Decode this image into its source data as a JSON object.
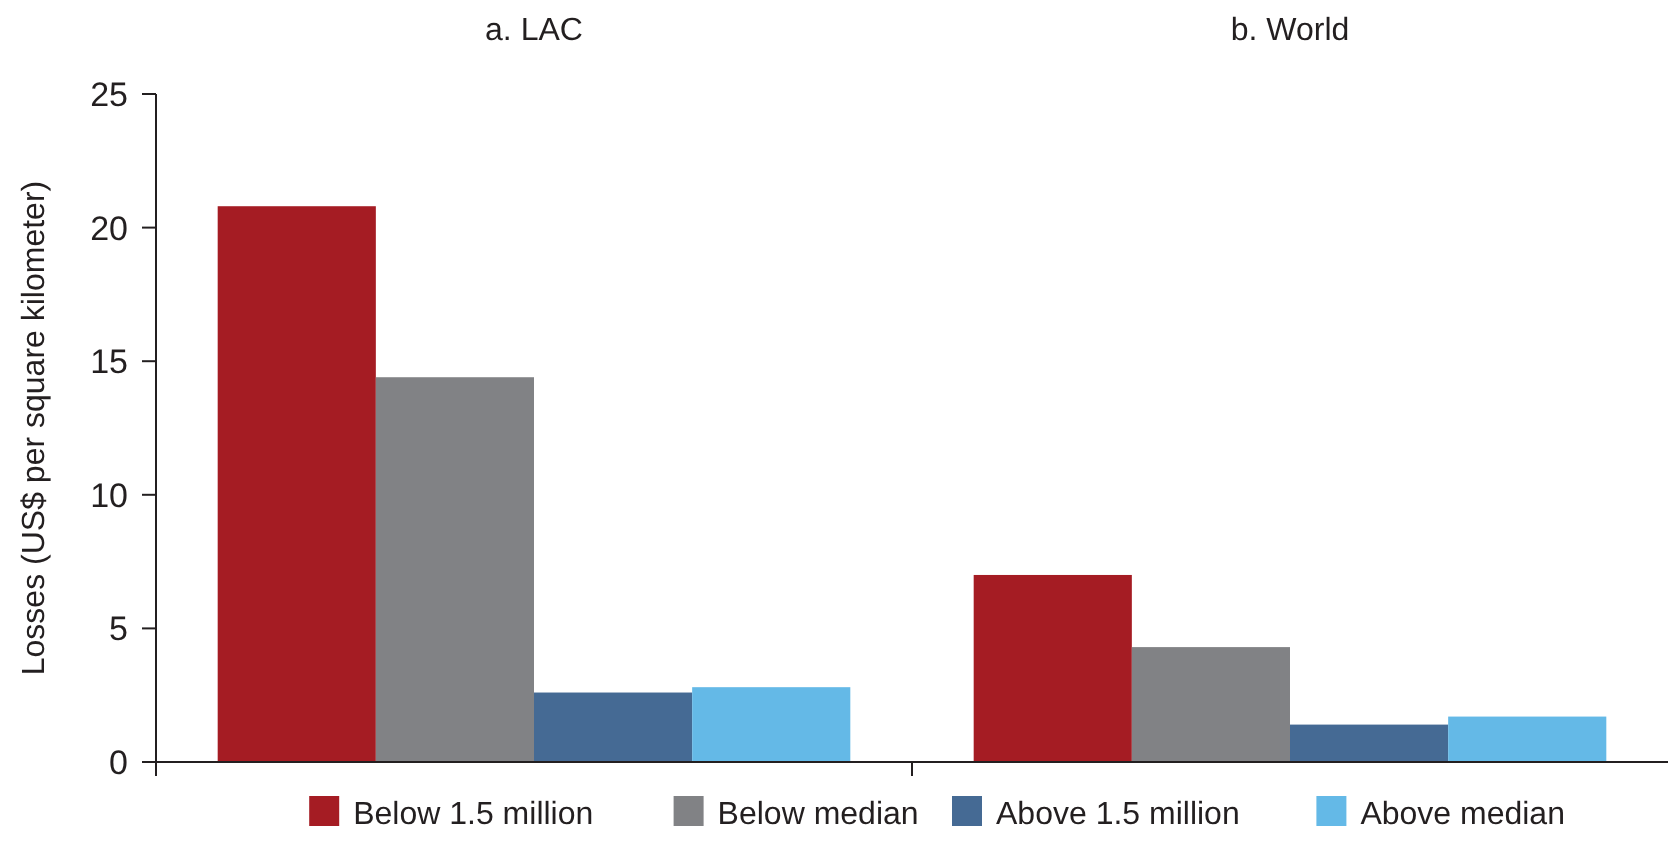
{
  "chart_data": {
    "type": "bar",
    "categories": [
      "a. LAC",
      "b. World"
    ],
    "ylabel": "Losses (US$ per square kilometer)",
    "ylim": [
      0,
      25
    ],
    "yticks": [
      0,
      5,
      10,
      15,
      20,
      25
    ],
    "grid": false,
    "legend": "bottom",
    "series": [
      {
        "name": "Below 1.5 million",
        "color": "#a51c23",
        "values": [
          20.8,
          7.0
        ]
      },
      {
        "name": "Below median",
        "color": "#818285",
        "values": [
          14.4,
          4.3
        ]
      },
      {
        "name": "Above 1.5 million",
        "color": "#456a94",
        "values": [
          2.6,
          1.4
        ]
      },
      {
        "name": "Above median",
        "color": "#64b9e7",
        "values": [
          2.8,
          1.7
        ]
      }
    ]
  }
}
